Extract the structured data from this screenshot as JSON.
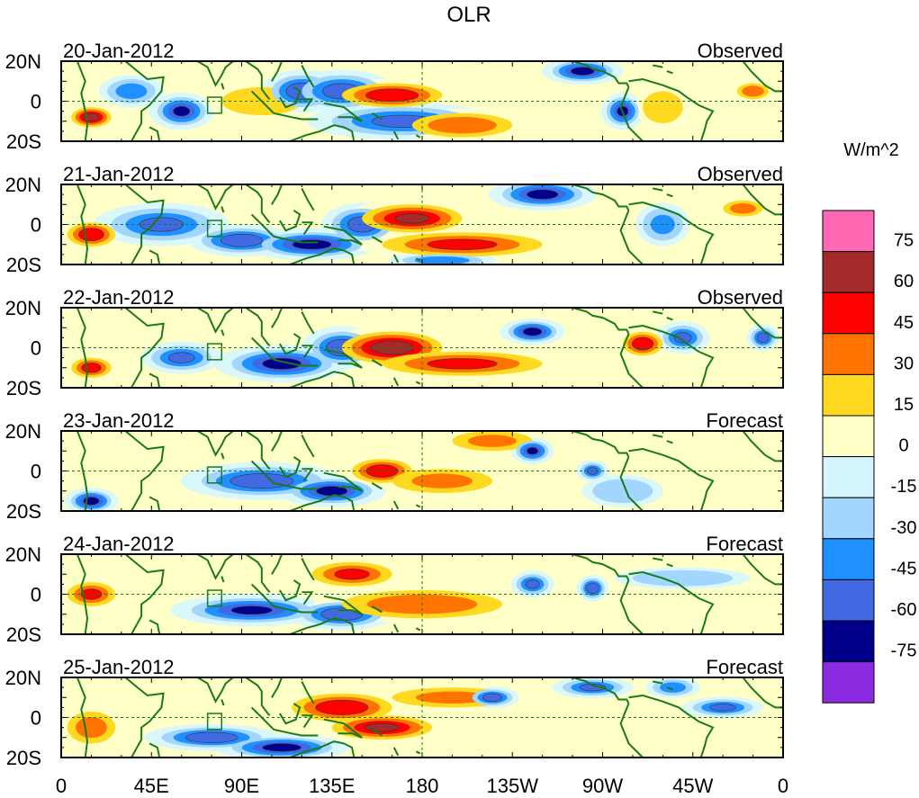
{
  "chart_data": {
    "type": "heatmap",
    "title": "OLR",
    "colorbar": {
      "units_label": "W/m^2",
      "colors": [
        "#ff69b4",
        "#a52a2a",
        "#ff0000",
        "#ff7400",
        "#ffd820",
        "#ffffc8",
        "#d6f6ff",
        "#a2d6ff",
        "#1e90ff",
        "#4169e1",
        "#00008b",
        "#8a2be2"
      ],
      "tick_labels": [
        "75",
        "60",
        "45",
        "30",
        "15",
        "0",
        "-15",
        "-30",
        "-45",
        "-60",
        "-75"
      ]
    },
    "x_ticks": [
      "0",
      "45E",
      "90E",
      "135E",
      "180",
      "135W",
      "90W",
      "45W",
      "0"
    ],
    "y_ticks": [
      "20N",
      "0",
      "20S"
    ],
    "panels": [
      {
        "date": "20-Jan-2012",
        "kind": "Observed",
        "anomalies": [
          {
            "lon": 15,
            "lat": -8,
            "rlon": 10,
            "rlat": 5,
            "v": 65
          },
          {
            "lon": 35,
            "lat": 5,
            "rlon": 12,
            "rlat": 6,
            "v": -35
          },
          {
            "lon": 60,
            "lat": -5,
            "rlon": 12,
            "rlat": 7,
            "v": -60
          },
          {
            "lon": 100,
            "lat": 0,
            "rlon": 20,
            "rlat": 7,
            "v": 20
          },
          {
            "lon": 120,
            "lat": 5,
            "rlon": 15,
            "rlat": 8,
            "v": -55
          },
          {
            "lon": 140,
            "lat": 5,
            "rlon": 20,
            "rlat": 8,
            "v": -50
          },
          {
            "lon": 165,
            "lat": 3,
            "rlon": 25,
            "rlat": 6,
            "v": 55
          },
          {
            "lon": 170,
            "lat": -10,
            "rlon": 35,
            "rlat": 7,
            "v": -45
          },
          {
            "lon": 200,
            "lat": -12,
            "rlon": 25,
            "rlat": 6,
            "v": 40
          },
          {
            "lon": 260,
            "lat": 15,
            "rlon": 15,
            "rlat": 5,
            "v": -65
          },
          {
            "lon": 280,
            "lat": -5,
            "rlon": 8,
            "rlat": 7,
            "v": -60
          },
          {
            "lon": 300,
            "lat": -3,
            "rlon": 10,
            "rlat": 8,
            "v": 20
          },
          {
            "lon": 345,
            "lat": 5,
            "rlon": 8,
            "rlat": 4,
            "v": 40
          }
        ]
      },
      {
        "date": "21-Jan-2012",
        "kind": "Observed",
        "anomalies": [
          {
            "lon": 15,
            "lat": -5,
            "rlon": 12,
            "rlat": 6,
            "v": 55
          },
          {
            "lon": 50,
            "lat": 0,
            "rlon": 25,
            "rlat": 8,
            "v": -45
          },
          {
            "lon": 90,
            "lat": -8,
            "rlon": 20,
            "rlat": 6,
            "v": -55
          },
          {
            "lon": 125,
            "lat": -10,
            "rlon": 25,
            "rlat": 6,
            "v": -65
          },
          {
            "lon": 150,
            "lat": 0,
            "rlon": 15,
            "rlat": 8,
            "v": -50
          },
          {
            "lon": 175,
            "lat": 3,
            "rlon": 25,
            "rlat": 7,
            "v": 60
          },
          {
            "lon": 200,
            "lat": -10,
            "rlon": 40,
            "rlat": 6,
            "v": 45
          },
          {
            "lon": 190,
            "lat": -18,
            "rlon": 20,
            "rlat": 3,
            "v": -40
          },
          {
            "lon": 240,
            "lat": 15,
            "rlon": 20,
            "rlat": 6,
            "v": -65
          },
          {
            "lon": 300,
            "lat": 0,
            "rlon": 10,
            "rlat": 8,
            "v": -30
          },
          {
            "lon": 340,
            "lat": 8,
            "rlon": 10,
            "rlat": 4,
            "v": 35
          }
        ]
      },
      {
        "date": "22-Jan-2012",
        "kind": "Observed",
        "anomalies": [
          {
            "lon": 15,
            "lat": -10,
            "rlon": 10,
            "rlat": 5,
            "v": 50
          },
          {
            "lon": 60,
            "lat": -5,
            "rlon": 15,
            "rlat": 6,
            "v": -45
          },
          {
            "lon": 110,
            "lat": -8,
            "rlon": 25,
            "rlat": 7,
            "v": -65
          },
          {
            "lon": 140,
            "lat": 0,
            "rlon": 15,
            "rlat": 8,
            "v": -55
          },
          {
            "lon": 165,
            "lat": 0,
            "rlon": 25,
            "rlat": 8,
            "v": 70
          },
          {
            "lon": 200,
            "lat": -8,
            "rlon": 40,
            "rlat": 6,
            "v": 45
          },
          {
            "lon": 235,
            "lat": 8,
            "rlon": 12,
            "rlat": 5,
            "v": -65
          },
          {
            "lon": 290,
            "lat": 2,
            "rlon": 10,
            "rlat": 6,
            "v": 55
          },
          {
            "lon": 310,
            "lat": 5,
            "rlon": 10,
            "rlat": 6,
            "v": -45
          },
          {
            "lon": 350,
            "lat": 5,
            "rlon": 6,
            "rlat": 5,
            "v": -50
          }
        ]
      },
      {
        "date": "23-Jan-2012",
        "kind": "Forecast",
        "anomalies": [
          {
            "lon": 15,
            "lat": -15,
            "rlon": 10,
            "rlat": 5,
            "v": -65
          },
          {
            "lon": 100,
            "lat": -5,
            "rlon": 30,
            "rlat": 7,
            "v": -55
          },
          {
            "lon": 135,
            "lat": -10,
            "rlon": 20,
            "rlat": 6,
            "v": -65
          },
          {
            "lon": 160,
            "lat": 0,
            "rlon": 15,
            "rlat": 6,
            "v": 55
          },
          {
            "lon": 190,
            "lat": -5,
            "rlon": 25,
            "rlat": 6,
            "v": 30
          },
          {
            "lon": 215,
            "lat": 15,
            "rlon": 20,
            "rlat": 5,
            "v": 30
          },
          {
            "lon": 235,
            "lat": 10,
            "rlon": 8,
            "rlat": 5,
            "v": -60
          },
          {
            "lon": 265,
            "lat": 0,
            "rlon": 6,
            "rlat": 4,
            "v": -45
          },
          {
            "lon": 280,
            "lat": -10,
            "rlon": 15,
            "rlat": 6,
            "v": -25
          }
        ]
      },
      {
        "date": "24-Jan-2012",
        "kind": "Forecast",
        "anomalies": [
          {
            "lon": 15,
            "lat": 0,
            "rlon": 12,
            "rlat": 6,
            "v": 45
          },
          {
            "lon": 95,
            "lat": -8,
            "rlon": 30,
            "rlat": 6,
            "v": -60
          },
          {
            "lon": 140,
            "lat": -10,
            "rlon": 20,
            "rlat": 6,
            "v": -55
          },
          {
            "lon": 145,
            "lat": 10,
            "rlon": 20,
            "rlat": 6,
            "v": 45
          },
          {
            "lon": 180,
            "lat": -5,
            "rlon": 40,
            "rlat": 7,
            "v": 40
          },
          {
            "lon": 235,
            "lat": 5,
            "rlon": 8,
            "rlat": 5,
            "v": -45
          },
          {
            "lon": 265,
            "lat": 3,
            "rlon": 6,
            "rlat": 5,
            "v": -55
          },
          {
            "lon": 310,
            "lat": 8,
            "rlon": 25,
            "rlat": 4,
            "v": -25
          }
        ]
      },
      {
        "date": "25-Jan-2012",
        "kind": "Forecast",
        "anomalies": [
          {
            "lon": 15,
            "lat": -5,
            "rlon": 12,
            "rlat": 8,
            "v": 35
          },
          {
            "lon": 75,
            "lat": -10,
            "rlon": 25,
            "rlat": 5,
            "v": -55
          },
          {
            "lon": 110,
            "lat": -15,
            "rlon": 25,
            "rlat": 5,
            "v": -65
          },
          {
            "lon": 140,
            "lat": 5,
            "rlon": 25,
            "rlat": 7,
            "v": 55
          },
          {
            "lon": 160,
            "lat": -5,
            "rlon": 25,
            "rlat": 6,
            "v": 60
          },
          {
            "lon": 195,
            "lat": 10,
            "rlon": 30,
            "rlat": 5,
            "v": 30
          },
          {
            "lon": 215,
            "lat": 10,
            "rlon": 10,
            "rlat": 4,
            "v": -50
          },
          {
            "lon": 265,
            "lat": 15,
            "rlon": 15,
            "rlat": 4,
            "v": -45
          },
          {
            "lon": 305,
            "lat": 15,
            "rlon": 10,
            "rlat": 4,
            "v": -35
          },
          {
            "lon": 330,
            "lat": 5,
            "rlon": 15,
            "rlat": 4,
            "v": -45
          }
        ]
      }
    ]
  }
}
